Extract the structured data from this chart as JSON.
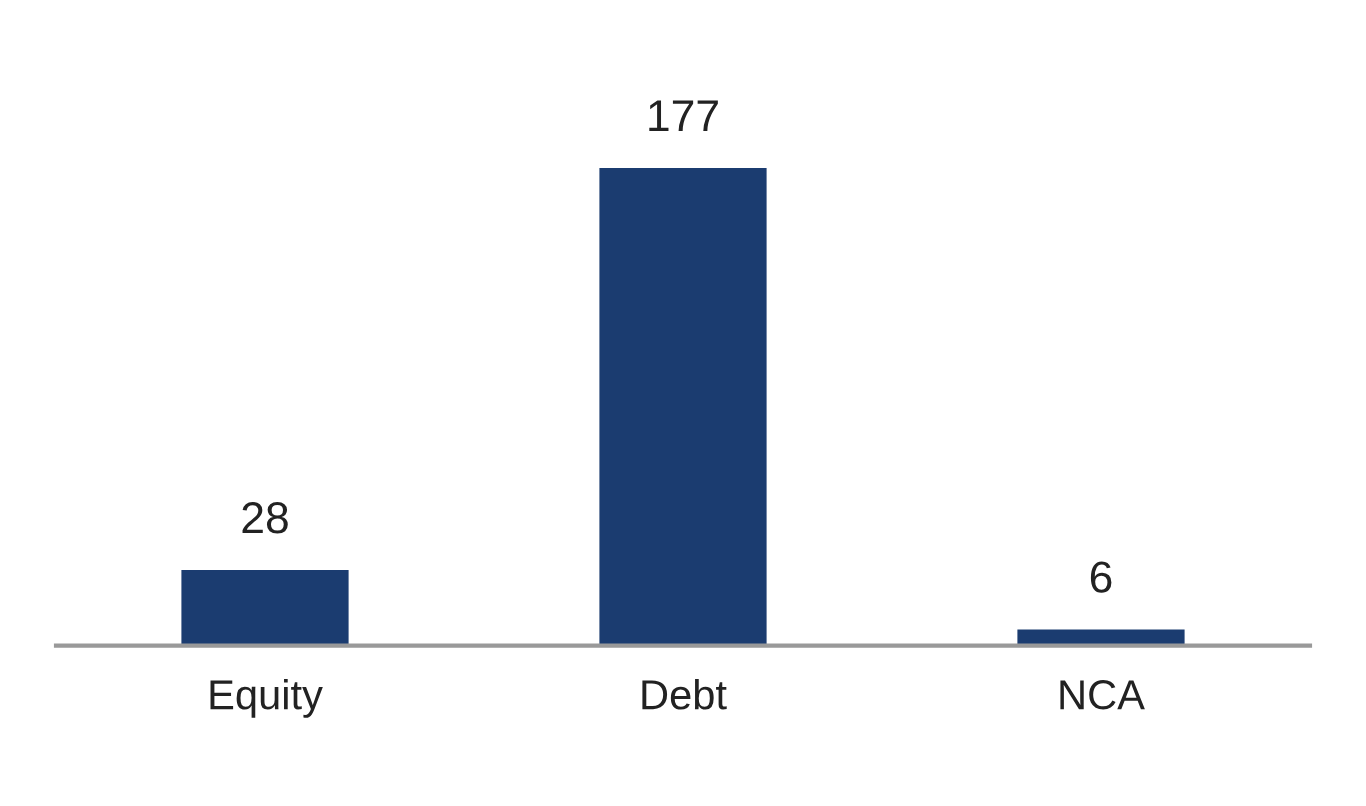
{
  "chart_data": {
    "type": "bar",
    "categories": [
      "Equity",
      "Debt",
      "NCA"
    ],
    "values": [
      28,
      177,
      6
    ],
    "color": "#1b3c70",
    "data_labels": true,
    "grid": false,
    "legend": false
  }
}
